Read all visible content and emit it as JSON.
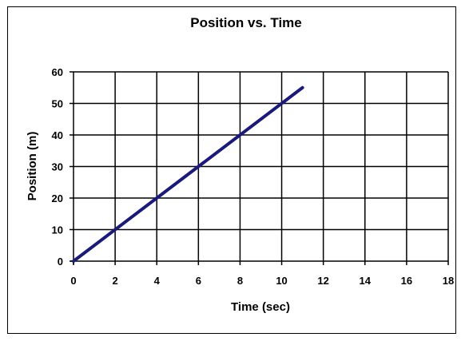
{
  "chart_data": {
    "type": "line",
    "title": "Position vs. Time",
    "xlabel": "Time (sec)",
    "ylabel": "Position (m)",
    "xlim": [
      0,
      18
    ],
    "ylim": [
      0,
      60
    ],
    "x_ticks": [
      0,
      2,
      4,
      6,
      8,
      10,
      12,
      14,
      16,
      18
    ],
    "y_ticks": [
      0,
      10,
      20,
      30,
      40,
      50,
      60
    ],
    "grid": true,
    "legend": "none",
    "series": [
      {
        "color": "#1a1a7a",
        "points": [
          [
            0,
            0
          ],
          [
            11,
            55
          ]
        ]
      }
    ],
    "colors": {
      "grid": "#000000",
      "line": "#1a1a7a",
      "background": "#ffffff"
    }
  }
}
